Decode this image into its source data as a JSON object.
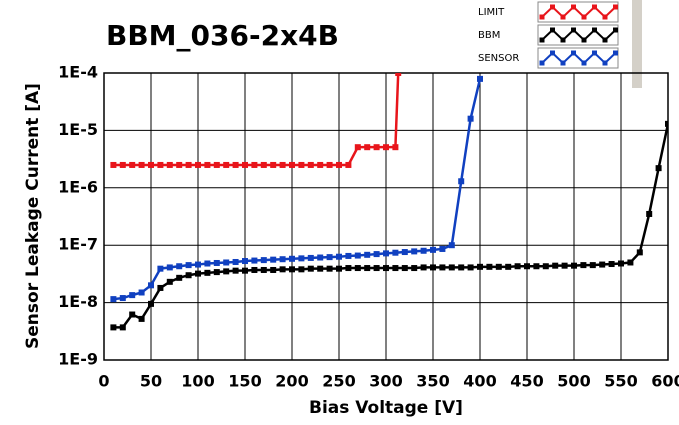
{
  "chart_data": {
    "type": "line",
    "title": "BBM_036-2x4B",
    "x_label": "Bias Voltage [V]",
    "y_label": "Sensor Leakage Current [A]",
    "y_scale": "log",
    "grid": true,
    "xlim": [
      0,
      600
    ],
    "ylim": [
      1e-09,
      0.0001
    ],
    "xticks": [
      0,
      50,
      100,
      150,
      200,
      250,
      300,
      350,
      400,
      450,
      500,
      550,
      600
    ],
    "yticks": [
      {
        "value": 0.0001,
        "label": "1E-4"
      },
      {
        "value": 1e-05,
        "label": "1E-5"
      },
      {
        "value": 1e-06,
        "label": "1E-6"
      },
      {
        "value": 1e-07,
        "label": "1E-7"
      },
      {
        "value": 1e-08,
        "label": "1E-8"
      },
      {
        "value": 1e-09,
        "label": "1E-9"
      }
    ],
    "series": [
      {
        "name": "LIMIT",
        "color": "#e8151b",
        "x": [
          10,
          20,
          30,
          40,
          50,
          60,
          70,
          80,
          90,
          100,
          110,
          120,
          130,
          140,
          150,
          160,
          170,
          180,
          190,
          200,
          210,
          220,
          230,
          240,
          250,
          260,
          270,
          280,
          290,
          300,
          310,
          313
        ],
        "values": [
          2.5e-06,
          2.5e-06,
          2.5e-06,
          2.5e-06,
          2.5e-06,
          2.5e-06,
          2.5e-06,
          2.5e-06,
          2.5e-06,
          2.5e-06,
          2.5e-06,
          2.5e-06,
          2.5e-06,
          2.5e-06,
          2.5e-06,
          2.5e-06,
          2.5e-06,
          2.5e-06,
          2.5e-06,
          2.5e-06,
          2.5e-06,
          2.5e-06,
          2.5e-06,
          2.5e-06,
          2.5e-06,
          2.5e-06,
          5.1e-06,
          5.1e-06,
          5.1e-06,
          5.1e-06,
          5.1e-06,
          0.0001
        ]
      },
      {
        "name": "BBM",
        "color": "#000000",
        "x": [
          10,
          20,
          30,
          40,
          50,
          60,
          70,
          80,
          90,
          100,
          110,
          120,
          130,
          140,
          150,
          160,
          170,
          180,
          190,
          200,
          210,
          220,
          230,
          240,
          250,
          260,
          270,
          280,
          290,
          300,
          310,
          320,
          330,
          340,
          350,
          360,
          370,
          380,
          390,
          400,
          410,
          420,
          430,
          440,
          450,
          460,
          470,
          480,
          490,
          500,
          510,
          520,
          530,
          540,
          550,
          560,
          570,
          580,
          590,
          600
        ],
        "values": [
          3.7e-09,
          3.7e-09,
          6.2e-09,
          5.2e-09,
          9.5e-09,
          1.8e-08,
          2.3e-08,
          2.7e-08,
          3e-08,
          3.2e-08,
          3.3e-08,
          3.4e-08,
          3.5e-08,
          3.6e-08,
          3.6e-08,
          3.7e-08,
          3.7e-08,
          3.7e-08,
          3.8e-08,
          3.8e-08,
          3.8e-08,
          3.9e-08,
          3.9e-08,
          3.9e-08,
          3.9e-08,
          4e-08,
          4e-08,
          4e-08,
          4e-08,
          4e-08,
          4e-08,
          4e-08,
          4e-08,
          4.1e-08,
          4.1e-08,
          4.1e-08,
          4.1e-08,
          4.1e-08,
          4.1e-08,
          4.2e-08,
          4.2e-08,
          4.2e-08,
          4.2e-08,
          4.3e-08,
          4.3e-08,
          4.3e-08,
          4.3e-08,
          4.4e-08,
          4.4e-08,
          4.4e-08,
          4.5e-08,
          4.5e-08,
          4.6e-08,
          4.7e-08,
          4.8e-08,
          5e-08,
          7.5e-08,
          3.5e-07,
          2.2e-06,
          1.3e-05
        ]
      },
      {
        "name": "SENSOR",
        "color": "#1040c0",
        "x": [
          10,
          20,
          30,
          40,
          50,
          60,
          70,
          80,
          90,
          100,
          110,
          120,
          130,
          140,
          150,
          160,
          170,
          180,
          190,
          200,
          210,
          220,
          230,
          240,
          250,
          260,
          270,
          280,
          290,
          300,
          310,
          320,
          330,
          340,
          350,
          360,
          370,
          380,
          390,
          400
        ],
        "values": [
          1.15e-08,
          1.2e-08,
          1.35e-08,
          1.5e-08,
          2e-08,
          3.9e-08,
          4.1e-08,
          4.3e-08,
          4.5e-08,
          4.6e-08,
          4.8e-08,
          4.9e-08,
          5e-08,
          5.1e-08,
          5.3e-08,
          5.4e-08,
          5.5e-08,
          5.6e-08,
          5.7e-08,
          5.8e-08,
          5.9e-08,
          6e-08,
          6.1e-08,
          6.2e-08,
          6.3e-08,
          6.5e-08,
          6.6e-08,
          6.8e-08,
          7e-08,
          7.2e-08,
          7.4e-08,
          7.6e-08,
          7.8e-08,
          8e-08,
          8.3e-08,
          8.6e-08,
          1e-07,
          1.3e-06,
          1.6e-05,
          7.9e-05
        ]
      }
    ]
  }
}
